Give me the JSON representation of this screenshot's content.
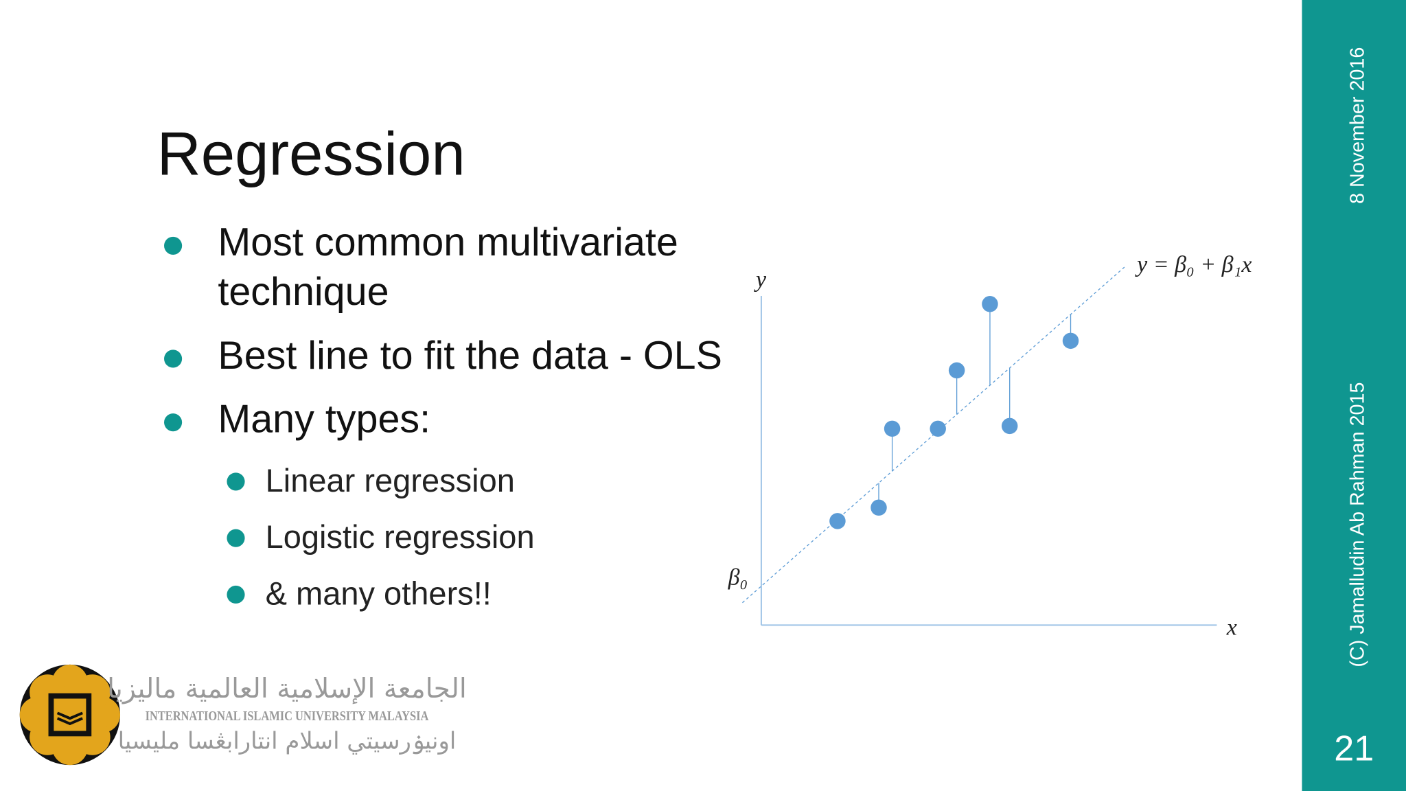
{
  "slide": {
    "title": "Regression",
    "bullets": [
      {
        "lines": [
          "Most common multivariate",
          "technique"
        ]
      },
      {
        "lines": [
          "Best line to fit the data - OLS"
        ]
      },
      {
        "lines": [
          "Many types:"
        ]
      }
    ],
    "sub_bullets": [
      "Linear regression",
      "Logistic regression",
      "& many others!!"
    ],
    "diagram": {
      "y_axis_label": "y",
      "x_axis_label": "x",
      "intercept_label": "β₀",
      "equation": "y = β₀ + β₁x"
    },
    "sidebar": {
      "date": "8 November 2016",
      "author": "(C) Jamalludin Ab Rahman 2015",
      "page_number": "21"
    },
    "logo": {
      "arabic": "الجامعة الإسلامية العالمية ماليزيا",
      "english": "INTERNATIONAL ISLAMIC UNIVERSITY MALAYSIA",
      "malay_jawi": "اونيۏرسيتي اسلام انتارابڠسا مليسيا"
    }
  }
}
